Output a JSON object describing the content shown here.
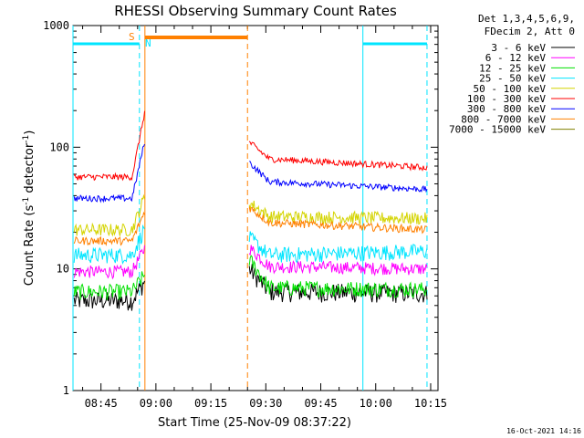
{
  "chart_data": {
    "type": "line",
    "title": "RHESSI Observing Summary Count Rates",
    "xlabel": "Start Time (25-Nov-09 08:37:22)",
    "ylabel_main": "Count Rate (s",
    "ylabel_sup1": "-1",
    "ylabel_mid": " detector",
    "ylabel_sup2": "-1",
    "ylabel_end": ")",
    "yscale": "log",
    "ylim": [
      1,
      1000
    ],
    "xlim": [
      "08:37:22",
      "10:17:00"
    ],
    "y_ticks": [
      "1",
      "10",
      "100",
      "1000"
    ],
    "x_ticks": [
      "08:45",
      "09:00",
      "09:15",
      "09:30",
      "09:45",
      "10:00",
      "10:15"
    ],
    "legend_header": [
      "Det 1,3,4,5,6,9,",
      "FDecim 2, Att 0"
    ],
    "legend_position": "right",
    "footer_stamp": "16-Oct-2021 14:16",
    "flags": {
      "saa_label": "S",
      "night_label": "N",
      "saa_color": "#ff8000",
      "night_color": "#00e5ff",
      "night_intervals": [
        [
          "08:37:22",
          "08:55:30"
        ],
        [
          "09:56:30",
          "10:14:00"
        ]
      ],
      "saa_interval": [
        "08:57:00",
        "09:25:00"
      ],
      "markers": [
        {
          "time": "08:37:22",
          "color": "#00e5ff",
          "dash": false
        },
        {
          "time": "08:55:30",
          "color": "#00e5ff",
          "dash": true
        },
        {
          "time": "08:57:00",
          "color": "#ff8000",
          "dash": false
        },
        {
          "time": "09:25:00",
          "color": "#ff8000",
          "dash": true
        },
        {
          "time": "09:56:30",
          "color": "#00e5ff",
          "dash": false
        },
        {
          "time": "10:14:00",
          "color": "#00e5ff",
          "dash": true
        }
      ]
    },
    "series": [
      {
        "name": "3 - 6 keV",
        "color": "#000000",
        "pre": 5.5,
        "rise_to": 8,
        "post_start": 10,
        "post_level": 6.5,
        "post_end": 6.3,
        "noise": 0.12
      },
      {
        "name": "6 - 12 keV",
        "color": "#ff00ff",
        "pre": 9.5,
        "rise_to": 15,
        "post_start": 15,
        "post_level": 10.5,
        "post_end": 10,
        "noise": 0.08
      },
      {
        "name": "12 - 25 keV",
        "color": "#00e000",
        "pre": 6.5,
        "rise_to": 9,
        "post_start": 12,
        "post_level": 7,
        "post_end": 6.8,
        "noise": 0.1
      },
      {
        "name": "25 - 50 keV",
        "color": "#00e5ff",
        "pre": 13,
        "rise_to": 22,
        "post_start": 18,
        "post_level": 13,
        "post_end": 14,
        "noise": 0.1
      },
      {
        "name": "50 - 100 keV",
        "color": "#d4d400",
        "pre": 21,
        "rise_to": 40,
        "post_start": 35,
        "post_level": 27,
        "post_end": 26,
        "noise": 0.08
      },
      {
        "name": "100 - 300 keV",
        "color": "#ff0000",
        "pre": 57,
        "rise_to": 200,
        "post_start": 110,
        "post_level": 80,
        "post_end": 68,
        "noise": 0.04
      },
      {
        "name": "300 - 800 keV",
        "color": "#0000ff",
        "pre": 38,
        "rise_to": 115,
        "post_start": 75,
        "post_level": 52,
        "post_end": 45,
        "noise": 0.04
      },
      {
        "name": "800 - 7000 keV",
        "color": "#ff8000",
        "pre": 17,
        "rise_to": 30,
        "post_start": 32,
        "post_level": 24,
        "post_end": 21,
        "noise": 0.05
      },
      {
        "name": "7000 - 15000 keV",
        "color": "#808000",
        "pre": null,
        "rise_to": null,
        "post_start": null,
        "post_level": null,
        "post_end": null,
        "noise": 0
      }
    ]
  }
}
